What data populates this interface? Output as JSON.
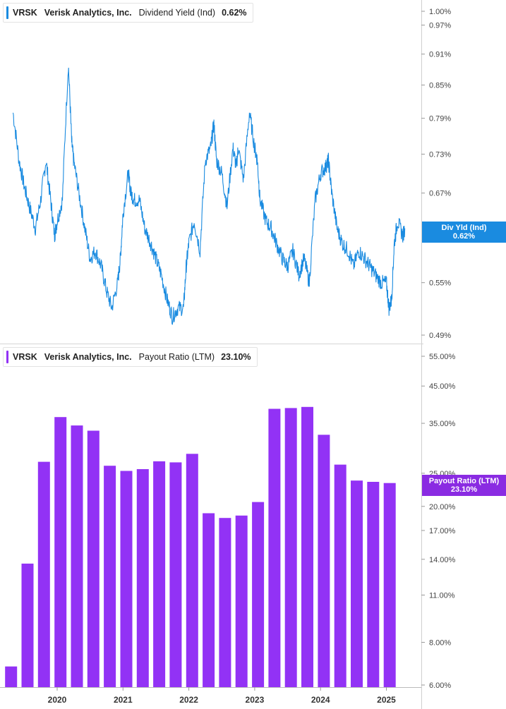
{
  "top_legend": {
    "ticker": "VRSK",
    "company": "Verisk Analytics, Inc.",
    "metric": "Dividend Yield (Ind)",
    "value": "0.62%"
  },
  "bottom_legend": {
    "ticker": "VRSK",
    "company": "Verisk Analytics, Inc.",
    "metric": "Payout Ratio (LTM)",
    "value": "23.10%"
  },
  "top_badge": {
    "label": "Div Yld (Ind)",
    "value": "0.62%"
  },
  "bottom_badge": {
    "label": "Payout Ratio (LTM)",
    "value": "23.10%"
  },
  "colors": {
    "line": "#1a8be0",
    "bar": "#9232f5",
    "badge_blue": "#1a8be0",
    "badge_purple": "#8a2be2"
  },
  "chart_data": [
    {
      "type": "line",
      "title": "Dividend Yield (Ind)",
      "y_ticks": [
        "1.00%",
        "0.97%",
        "0.91%",
        "0.85%",
        "0.79%",
        "0.73%",
        "0.67%",
        "0.55%",
        "0.49%"
      ],
      "y_scale": "log",
      "ylim": [
        0.48,
        1.02
      ],
      "x_ticks": [
        "2020",
        "2021",
        "2022",
        "2023",
        "2024",
        "2025"
      ],
      "series": [
        {
          "name": "Dividend Yield (Ind)",
          "x": [
            2019.33,
            2019.42,
            2019.5,
            2019.58,
            2019.67,
            2019.75,
            2019.83,
            2019.9,
            2019.96,
            2020.0,
            2020.08,
            2020.17,
            2020.22,
            2020.25,
            2020.33,
            2020.42,
            2020.5,
            2020.58,
            2020.67,
            2020.75,
            2020.83,
            2020.92,
            2020.96,
            2021.0,
            2021.08,
            2021.12,
            2021.17,
            2021.25,
            2021.33,
            2021.42,
            2021.5,
            2021.58,
            2021.67,
            2021.75,
            2021.83,
            2021.92,
            2021.96,
            2022.0,
            2022.08,
            2022.17,
            2022.25,
            2022.33,
            2022.38,
            2022.42,
            2022.5,
            2022.58,
            2022.67,
            2022.72,
            2022.75,
            2022.83,
            2022.92,
            2023.0,
            2023.04,
            2023.08,
            2023.17,
            2023.25,
            2023.33,
            2023.42,
            2023.5,
            2023.58,
            2023.67,
            2023.75,
            2023.83,
            2023.92,
            2024.0,
            2024.08,
            2024.12,
            2024.17,
            2024.25,
            2024.33,
            2024.42,
            2024.5,
            2024.58,
            2024.67,
            2024.75,
            2024.83,
            2024.92,
            2025.0,
            2025.04,
            2025.08,
            2025.12,
            2025.17,
            2025.25,
            2025.28
          ],
          "values": [
            0.8,
            0.72,
            0.68,
            0.65,
            0.62,
            0.66,
            0.72,
            0.66,
            0.61,
            0.63,
            0.66,
            0.89,
            0.75,
            0.72,
            0.67,
            0.62,
            0.58,
            0.59,
            0.57,
            0.54,
            0.52,
            0.55,
            0.58,
            0.64,
            0.7,
            0.67,
            0.66,
            0.66,
            0.62,
            0.6,
            0.58,
            0.56,
            0.53,
            0.51,
            0.52,
            0.52,
            0.57,
            0.6,
            0.63,
            0.59,
            0.72,
            0.74,
            0.78,
            0.72,
            0.7,
            0.65,
            0.74,
            0.71,
            0.74,
            0.69,
            0.8,
            0.74,
            0.72,
            0.66,
            0.63,
            0.62,
            0.6,
            0.58,
            0.57,
            0.59,
            0.56,
            0.58,
            0.55,
            0.66,
            0.7,
            0.71,
            0.72,
            0.67,
            0.62,
            0.6,
            0.59,
            0.57,
            0.59,
            0.58,
            0.57,
            0.56,
            0.55,
            0.55,
            0.52,
            0.53,
            0.6,
            0.63,
            0.61,
            0.62
          ]
        }
      ]
    },
    {
      "type": "bar",
      "title": "Payout Ratio (LTM)",
      "y_ticks": [
        "55.00%",
        "45.00%",
        "35.00%",
        "25.00%",
        "20.00%",
        "17.00%",
        "14.00%",
        "11.00%",
        "8.00%",
        "6.00%"
      ],
      "y_scale": "log",
      "ylim": [
        6.0,
        56.0
      ],
      "x_ticks": [
        "2020",
        "2021",
        "2022",
        "2023",
        "2024",
        "2025"
      ],
      "series": [
        {
          "name": "Payout Ratio (LTM)",
          "x": [
            2019.3,
            2019.55,
            2019.8,
            2020.05,
            2020.3,
            2020.55,
            2020.8,
            2021.05,
            2021.3,
            2021.55,
            2021.8,
            2022.05,
            2022.3,
            2022.55,
            2022.8,
            2023.05,
            2023.3,
            2023.55,
            2023.8,
            2024.05,
            2024.3,
            2024.55,
            2024.8,
            2025.05
          ],
          "values": [
            6.8,
            13.6,
            27.0,
            36.5,
            34.5,
            33.3,
            26.3,
            25.4,
            25.7,
            27.1,
            26.9,
            28.5,
            19.1,
            18.5,
            18.8,
            20.6,
            38.6,
            38.8,
            39.1,
            32.4,
            26.5,
            23.8,
            23.6,
            23.4
          ]
        }
      ]
    }
  ]
}
